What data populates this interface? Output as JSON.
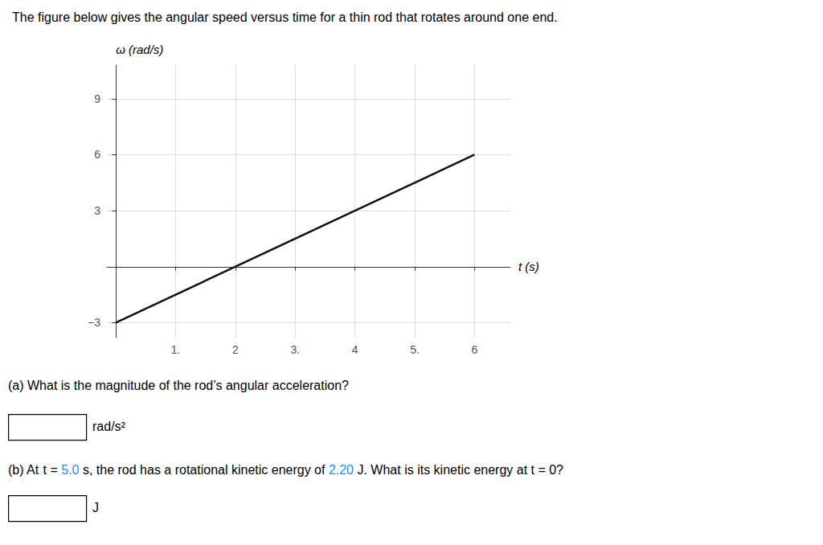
{
  "chart_data": {
    "type": "line",
    "title": "The figure below gives the angular speed versus time for a thin rod that rotates around one end.",
    "x_label": "t (s)",
    "y_label": "ω (rad/s)",
    "x": [
      0,
      6
    ],
    "values": [
      -3,
      6
    ],
    "color": "#111111",
    "xlim": [
      -0.15,
      6.6
    ],
    "ylim": [
      -3.8,
      10.8
    ],
    "xticks": [
      {
        "value": 1,
        "label": "1."
      },
      2,
      {
        "value": 3,
        "label": "3."
      },
      4,
      {
        "value": 5,
        "label": "5."
      },
      6
    ],
    "yticks": [
      {
        "value": -3,
        "label": "−3"
      },
      {
        "value": 0,
        "label": null
      },
      3,
      6,
      9
    ],
    "grid": true,
    "questions": [
      {
        "parts": [
          {
            "text": "(a) What is the magnitude of the rod’s angular acceleration?",
            "color": "#000000"
          }
        ],
        "unit": "rad/s²"
      },
      {
        "parts": [
          {
            "text": "(b) At ",
            "color": "#000000"
          },
          {
            "text": "t",
            "color": "#000000"
          },
          {
            "text": " = ",
            "color": "#000000"
          },
          {
            "text": "5.0",
            "color": "#1e90ff"
          },
          {
            "text": " s, the rod has a rotational kinetic energy of ",
            "color": "#000000"
          },
          {
            "text": "2.20",
            "color": "#1e90ff"
          },
          {
            "text": " J. What is its kinetic energy at ",
            "color": "#000000"
          },
          {
            "text": "t",
            "color": "#000000"
          },
          {
            "text": " = 0?",
            "color": "#000000"
          }
        ],
        "unit": "J"
      }
    ]
  }
}
